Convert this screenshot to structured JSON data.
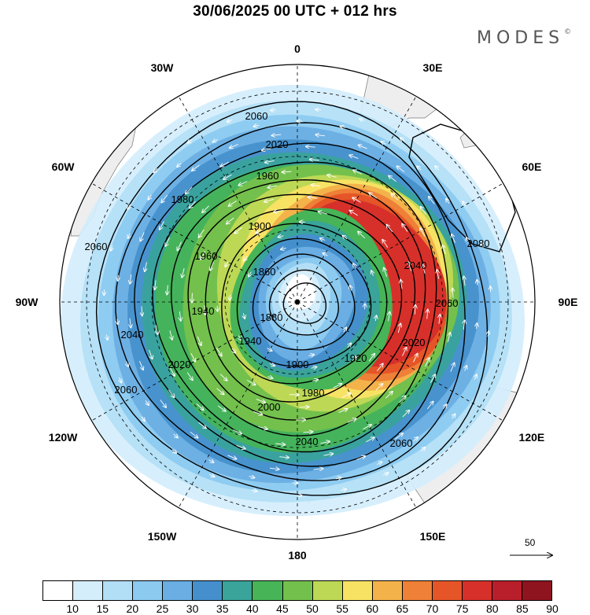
{
  "title": "30/06/2025  00 UTC  + 012 hrs",
  "brand": {
    "text": "MODES",
    "mark": "©"
  },
  "map": {
    "projection": "south polar stereographic",
    "meridian_labels": [
      {
        "text": "0",
        "lon": 0
      },
      {
        "text": "30E",
        "lon": 30
      },
      {
        "text": "60E",
        "lon": 60
      },
      {
        "text": "90E",
        "lon": 90
      },
      {
        "text": "120E",
        "lon": 120
      },
      {
        "text": "150E",
        "lon": 150
      },
      {
        "text": "180",
        "lon": 180
      },
      {
        "text": "150W",
        "lon": -150
      },
      {
        "text": "120W",
        "lon": -120
      },
      {
        "text": "90W",
        "lon": -90
      },
      {
        "text": "60W",
        "lon": -60
      },
      {
        "text": "30W",
        "lon": -30
      }
    ],
    "contour_labels": [
      "1860",
      "1880",
      "1900",
      "1920",
      "1940",
      "1960",
      "1980",
      "2000",
      "2020",
      "2040",
      "2060",
      "2080"
    ],
    "reference_vector": {
      "value": "50"
    },
    "colors": {
      "land": "#eeeeee",
      "coast": "#777777",
      "contour": "#000000",
      "wind_arrow": "#ffffff"
    }
  },
  "colorbar": {
    "ticks": [
      "10",
      "15",
      "20",
      "25",
      "30",
      "35",
      "40",
      "45",
      "50",
      "55",
      "60",
      "65",
      "70",
      "75",
      "80",
      "85",
      "90"
    ],
    "colors": [
      "#ffffff",
      "#d4eefc",
      "#b3dff6",
      "#8ccaf0",
      "#6aaee3",
      "#4590cc",
      "#3aa39a",
      "#46b457",
      "#73c04d",
      "#bdd855",
      "#f7e264",
      "#f4b24b",
      "#ee8037",
      "#e55528",
      "#d7302a",
      "#b91f2a",
      "#8e1520"
    ]
  }
}
